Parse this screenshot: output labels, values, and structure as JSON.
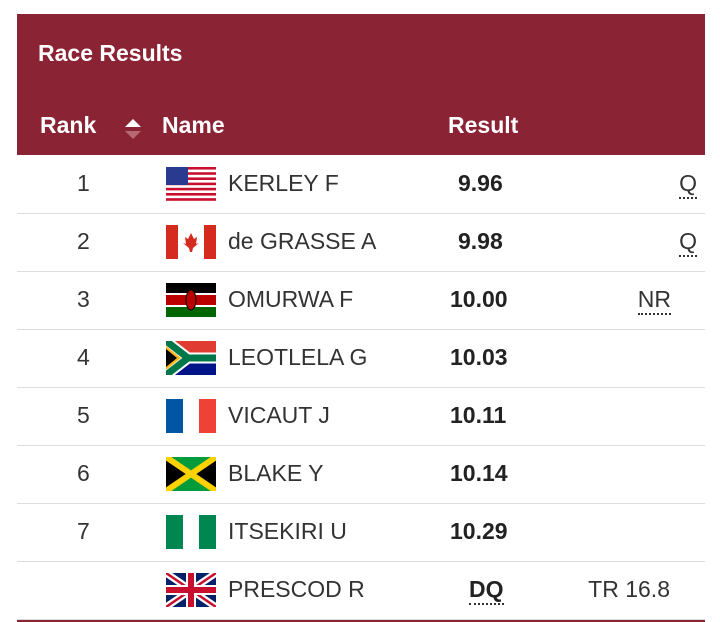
{
  "header": {
    "title": "Race Results",
    "columns": {
      "rank": "Rank",
      "name": "Name",
      "result": "Result"
    }
  },
  "table": {
    "rows": [
      {
        "rank": "1",
        "name": "KERLEY F",
        "result": "9.96",
        "note": "Q"
      },
      {
        "rank": "2",
        "name": "de GRASSE A",
        "result": "9.98",
        "note": "Q"
      },
      {
        "rank": "3",
        "name": "OMURWA F",
        "result": "10.00",
        "note": "NR"
      },
      {
        "rank": "4",
        "name": "LEOTLELA G",
        "result": "10.03"
      },
      {
        "rank": "5",
        "name": "VICAUT J",
        "result": "10.11"
      },
      {
        "rank": "6",
        "name": "BLAKE Y",
        "result": "10.14"
      },
      {
        "rank": "7",
        "name": "ITSEKIRI U",
        "result": "10.29"
      },
      {
        "name": "PRESCOD R",
        "result": "DQ",
        "note": "TR 16.8"
      }
    ]
  }
}
